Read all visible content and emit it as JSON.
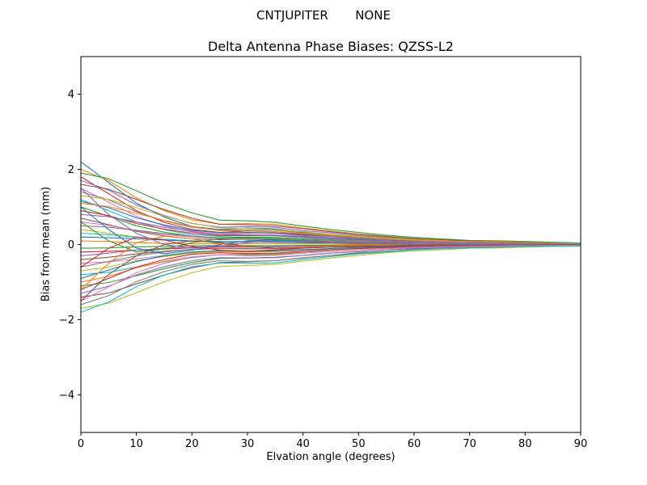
{
  "chart_data": {
    "type": "line",
    "suptitle": "CNTJUPITER       NONE",
    "title": "Delta Antenna Phase Biases: QZSS-L2",
    "xlabel": "Elvation angle (degrees)",
    "ylabel": "Bias from mean (mm)",
    "xlim": [
      0,
      90
    ],
    "ylim": [
      -5,
      5
    ],
    "x_ticks": [
      0,
      10,
      20,
      30,
      40,
      50,
      60,
      70,
      80,
      90
    ],
    "y_ticks": [
      -4,
      -2,
      0,
      2,
      4
    ],
    "grid": false,
    "legend": false,
    "x": [
      0,
      5,
      10,
      15,
      20,
      25,
      30,
      35,
      40,
      45,
      50,
      55,
      60,
      65,
      70,
      75,
      80,
      85,
      90
    ],
    "series": [
      [
        2.2,
        1.65,
        1.1,
        0.73,
        0.48,
        0.4,
        0.44,
        0.42,
        0.33,
        0.26,
        0.2,
        0.15,
        0.11,
        0.09,
        0.07,
        0.06,
        0.04,
        0.03,
        0.02
      ],
      [
        2.0,
        1.7,
        1.24,
        0.9,
        0.66,
        0.54,
        0.56,
        0.54,
        0.44,
        0.36,
        0.28,
        0.22,
        0.16,
        0.12,
        0.1,
        0.08,
        0.06,
        0.05,
        0.04
      ],
      [
        1.9,
        1.75,
        1.43,
        1.1,
        0.84,
        0.65,
        0.63,
        0.59,
        0.49,
        0.4,
        0.32,
        0.25,
        0.19,
        0.15,
        0.11,
        0.1,
        0.08,
        0.06,
        0.04
      ],
      [
        1.8,
        1.35,
        0.9,
        0.59,
        0.4,
        0.32,
        0.36,
        0.34,
        0.27,
        0.22,
        0.16,
        0.13,
        0.09,
        0.07,
        0.05,
        0.05,
        0.04,
        0.03,
        0.02
      ],
      [
        1.7,
        1.45,
        1.05,
        0.77,
        0.56,
        0.46,
        0.48,
        0.46,
        0.37,
        0.31,
        0.24,
        0.19,
        0.14,
        0.1,
        0.09,
        0.07,
        0.05,
        0.04,
        0.03
      ],
      [
        1.6,
        1.47,
        1.2,
        0.93,
        0.7,
        0.54,
        0.53,
        0.5,
        0.42,
        0.34,
        0.27,
        0.21,
        0.16,
        0.13,
        0.1,
        0.08,
        0.06,
        0.05,
        0.03
      ],
      [
        1.5,
        1.13,
        0.75,
        0.5,
        0.33,
        0.27,
        0.3,
        0.29,
        0.23,
        0.18,
        0.14,
        0.11,
        0.08,
        0.06,
        0.05,
        0.04,
        0.03,
        0.02,
        0.02
      ],
      [
        1.4,
        1.19,
        0.87,
        0.63,
        0.46,
        0.38,
        0.39,
        0.38,
        0.31,
        0.25,
        0.2,
        0.15,
        0.11,
        0.08,
        0.07,
        0.06,
        0.04,
        0.04,
        0.03
      ],
      [
        1.3,
        1.2,
        0.98,
        0.75,
        0.57,
        0.44,
        0.43,
        0.4,
        0.34,
        0.27,
        0.22,
        0.17,
        0.13,
        0.1,
        0.08,
        0.07,
        0.05,
        0.04,
        0.03
      ],
      [
        1.2,
        0.9,
        0.6,
        0.4,
        0.26,
        0.22,
        0.24,
        0.23,
        0.18,
        0.14,
        0.11,
        0.08,
        0.06,
        0.05,
        0.04,
        0.03,
        0.02,
        0.02,
        0.01
      ],
      [
        1.15,
        0.98,
        0.71,
        0.52,
        0.38,
        0.31,
        0.32,
        0.31,
        0.25,
        0.21,
        0.16,
        0.13,
        0.09,
        0.07,
        0.06,
        0.05,
        0.03,
        0.03,
        0.02
      ],
      [
        1.1,
        1.01,
        0.83,
        0.64,
        0.48,
        0.37,
        0.36,
        0.34,
        0.29,
        0.23,
        0.19,
        0.14,
        0.11,
        0.09,
        0.07,
        0.06,
        0.04,
        0.03,
        0.02
      ],
      [
        1.0,
        0.75,
        0.5,
        0.33,
        0.22,
        0.18,
        0.2,
        0.19,
        0.15,
        0.12,
        0.09,
        0.07,
        0.05,
        0.04,
        0.03,
        0.03,
        0.02,
        0.02,
        0.01
      ],
      [
        0.9,
        0.77,
        0.56,
        0.41,
        0.3,
        0.24,
        0.25,
        0.24,
        0.2,
        0.16,
        0.13,
        0.1,
        0.07,
        0.05,
        0.05,
        0.04,
        0.03,
        0.02,
        0.02
      ],
      [
        0.8,
        0.74,
        0.6,
        0.46,
        0.35,
        0.27,
        0.26,
        0.25,
        0.21,
        0.17,
        0.14,
        0.1,
        0.08,
        0.06,
        0.05,
        0.04,
        0.03,
        0.02,
        0.02
      ],
      [
        0.7,
        0.53,
        0.35,
        0.23,
        0.15,
        0.13,
        0.14,
        0.13,
        0.11,
        0.08,
        0.06,
        0.05,
        0.04,
        0.03,
        0.02,
        0.02,
        0.01,
        0.01,
        0.01
      ],
      [
        0.6,
        0.51,
        0.37,
        0.27,
        0.2,
        0.16,
        0.17,
        0.16,
        0.13,
        0.11,
        0.08,
        0.07,
        0.05,
        0.04,
        0.03,
        0.02,
        0.02,
        0.02,
        0.01
      ],
      [
        0.5,
        0.46,
        0.38,
        0.29,
        0.22,
        0.17,
        0.17,
        0.16,
        0.13,
        0.11,
        0.09,
        0.07,
        0.05,
        0.04,
        0.03,
        0.03,
        0.02,
        0.02,
        0.01
      ],
      [
        0.4,
        0.3,
        0.2,
        0.13,
        0.09,
        0.07,
        0.08,
        0.08,
        0.06,
        0.05,
        0.04,
        0.03,
        0.02,
        0.02,
        0.01,
        0.01,
        0.01,
        0.01,
        0.0
      ],
      [
        0.3,
        0.26,
        0.19,
        0.14,
        0.1,
        0.08,
        0.08,
        0.08,
        0.07,
        0.05,
        0.04,
        0.03,
        0.02,
        0.02,
        0.02,
        0.01,
        0.01,
        0.01,
        0.01
      ],
      [
        0.2,
        0.18,
        0.15,
        0.12,
        0.09,
        0.07,
        0.07,
        0.06,
        0.05,
        0.04,
        0.03,
        0.03,
        0.02,
        0.02,
        0.01,
        0.01,
        0.01,
        0.01,
        0.0
      ],
      [
        0.1,
        0.08,
        0.05,
        0.03,
        0.02,
        0.02,
        0.02,
        0.02,
        0.02,
        0.01,
        0.01,
        0.01,
        0.01,
        0.0,
        0.0,
        0.0,
        0.0,
        0.0,
        0.0
      ],
      [
        -0.1,
        -0.09,
        -0.06,
        -0.05,
        -0.03,
        -0.03,
        -0.03,
        -0.03,
        -0.02,
        -0.02,
        -0.01,
        -0.01,
        -0.01,
        -0.01,
        -0.01,
        0.0,
        0.0,
        0.0,
        0.0
      ],
      [
        -0.2,
        -0.18,
        -0.15,
        -0.12,
        -0.09,
        -0.07,
        -0.07,
        -0.06,
        -0.05,
        -0.04,
        -0.03,
        -0.03,
        -0.02,
        -0.02,
        -0.01,
        -0.01,
        -0.01,
        -0.01,
        0.0
      ],
      [
        -0.3,
        -0.23,
        -0.15,
        -0.1,
        -0.07,
        -0.05,
        -0.06,
        -0.06,
        -0.05,
        -0.04,
        -0.03,
        -0.02,
        -0.02,
        -0.01,
        -0.01,
        -0.01,
        -0.01,
        0.0,
        0.0
      ],
      [
        -0.4,
        -0.34,
        -0.25,
        -0.18,
        -0.13,
        -0.11,
        -0.11,
        -0.11,
        -0.09,
        -0.07,
        -0.06,
        -0.04,
        -0.03,
        -0.02,
        -0.02,
        -0.02,
        -0.01,
        -0.01,
        -0.01
      ],
      [
        -0.5,
        -0.46,
        -0.38,
        -0.29,
        -0.22,
        -0.17,
        -0.17,
        -0.16,
        -0.13,
        -0.11,
        -0.09,
        -0.07,
        -0.05,
        -0.04,
        -0.03,
        -0.03,
        -0.02,
        -0.02,
        -0.01
      ],
      [
        -0.6,
        -0.45,
        -0.3,
        -0.2,
        -0.13,
        -0.11,
        -0.12,
        -0.11,
        -0.09,
        -0.07,
        -0.05,
        -0.04,
        -0.03,
        -0.02,
        -0.02,
        -0.02,
        -0.01,
        -0.01,
        -0.01
      ],
      [
        -0.7,
        -0.6,
        -0.43,
        -0.32,
        -0.23,
        -0.19,
        -0.2,
        -0.19,
        -0.15,
        -0.13,
        -0.1,
        -0.08,
        -0.06,
        -0.04,
        -0.04,
        -0.03,
        -0.02,
        -0.02,
        -0.01
      ],
      [
        -0.8,
        -0.74,
        -0.6,
        -0.46,
        -0.35,
        -0.27,
        -0.26,
        -0.25,
        -0.21,
        -0.17,
        -0.14,
        -0.1,
        -0.08,
        -0.06,
        -0.05,
        -0.04,
        -0.03,
        -0.02,
        -0.02
      ],
      [
        -0.9,
        -0.68,
        -0.45,
        -0.3,
        -0.2,
        -0.16,
        -0.18,
        -0.17,
        -0.14,
        -0.11,
        -0.08,
        -0.06,
        -0.05,
        -0.04,
        -0.03,
        -0.02,
        -0.02,
        -0.01,
        -0.01
      ],
      [
        -1.0,
        -0.85,
        -0.62,
        -0.45,
        -0.33,
        -0.27,
        -0.28,
        -0.27,
        -0.22,
        -0.18,
        -0.14,
        -0.11,
        -0.08,
        -0.06,
        -0.05,
        -0.04,
        -0.03,
        -0.03,
        -0.02
      ],
      [
        -1.1,
        -1.01,
        -0.83,
        -0.64,
        -0.48,
        -0.37,
        -0.36,
        -0.34,
        -0.29,
        -0.23,
        -0.19,
        -0.14,
        -0.11,
        -0.09,
        -0.07,
        -0.06,
        -0.04,
        -0.03,
        -0.02
      ],
      [
        -1.2,
        -0.9,
        -0.6,
        -0.4,
        -0.26,
        -0.22,
        -0.24,
        -0.23,
        -0.18,
        -0.14,
        -0.11,
        -0.08,
        -0.06,
        -0.05,
        -0.04,
        -0.03,
        -0.02,
        -0.02,
        -0.01
      ],
      [
        -1.3,
        -1.11,
        -0.81,
        -0.59,
        -0.43,
        -0.35,
        -0.36,
        -0.35,
        -0.29,
        -0.23,
        -0.18,
        -0.14,
        -0.1,
        -0.08,
        -0.07,
        -0.05,
        -0.04,
        -0.03,
        -0.03
      ],
      [
        -1.4,
        -1.29,
        -1.05,
        -0.81,
        -0.62,
        -0.48,
        -0.46,
        -0.43,
        -0.36,
        -0.29,
        -0.24,
        -0.18,
        -0.14,
        -0.11,
        -0.08,
        -0.07,
        -0.06,
        -0.04,
        -0.03
      ],
      [
        -1.5,
        -1.13,
        -0.75,
        -0.5,
        -0.33,
        -0.27,
        -0.3,
        -0.29,
        -0.23,
        -0.18,
        -0.14,
        -0.11,
        -0.08,
        -0.06,
        -0.05,
        -0.04,
        -0.03,
        -0.02,
        -0.02
      ],
      [
        -1.6,
        -1.36,
        -0.99,
        -0.72,
        -0.53,
        -0.43,
        -0.45,
        -0.43,
        -0.35,
        -0.29,
        -0.22,
        -0.18,
        -0.13,
        -0.1,
        -0.08,
        -0.06,
        -0.05,
        -0.04,
        -0.03
      ],
      [
        -1.7,
        -1.56,
        -1.28,
        -0.99,
        -0.75,
        -0.58,
        -0.56,
        -0.53,
        -0.44,
        -0.36,
        -0.29,
        -0.22,
        -0.17,
        -0.14,
        -0.1,
        -0.09,
        -0.07,
        -0.05,
        -0.03
      ],
      [
        -1.8,
        -1.53,
        -1.12,
        -0.81,
        -0.59,
        -0.49,
        -0.5,
        -0.49,
        -0.4,
        -0.32,
        -0.25,
        -0.2,
        -0.14,
        -0.11,
        -0.09,
        -0.07,
        -0.05,
        -0.05,
        -0.04
      ],
      [
        1.0,
        0.4,
        -0.1,
        -0.25,
        -0.15,
        0.0,
        0.1,
        0.12,
        0.08,
        0.05,
        0.03,
        0.02,
        0.01,
        0.01,
        0.01,
        0.0,
        0.0,
        0.0,
        0.0
      ],
      [
        -1.2,
        -0.5,
        0.05,
        0.22,
        0.15,
        0.02,
        -0.06,
        -0.1,
        -0.07,
        -0.04,
        -0.02,
        -0.01,
        -0.01,
        0.0,
        0.0,
        0.0,
        0.0,
        0.0,
        0.0
      ],
      [
        0.6,
        0.1,
        -0.2,
        -0.12,
        0.05,
        0.15,
        0.18,
        0.14,
        0.1,
        0.06,
        0.04,
        0.03,
        0.02,
        0.01,
        0.01,
        0.01,
        0.0,
        0.0,
        0.0
      ],
      [
        -0.6,
        -0.1,
        0.2,
        0.12,
        -0.05,
        -0.15,
        -0.18,
        -0.14,
        -0.1,
        -0.06,
        -0.04,
        -0.03,
        -0.02,
        -0.01,
        -0.01,
        -0.01,
        0.0,
        0.0,
        0.0
      ],
      [
        1.5,
        0.8,
        0.3,
        0.0,
        -0.1,
        -0.05,
        0.05,
        0.1,
        0.09,
        0.06,
        0.04,
        0.03,
        0.02,
        0.02,
        0.01,
        0.01,
        0.01,
        0.0,
        0.0
      ],
      [
        -1.5,
        -0.8,
        -0.3,
        0.0,
        0.1,
        0.05,
        -0.05,
        -0.1,
        -0.09,
        -0.06,
        -0.04,
        -0.03,
        -0.02,
        -0.02,
        -0.01,
        -0.01,
        -0.01,
        0.0,
        0.0
      ]
    ],
    "palette": [
      "#1f77b4",
      "#ff7f0e",
      "#2ca02c",
      "#d62728",
      "#9467bd",
      "#8c564b",
      "#e377c2",
      "#7f7f7f",
      "#bcbd22",
      "#17becf"
    ],
    "axis_color": "#000000",
    "background": "#ffffff"
  }
}
